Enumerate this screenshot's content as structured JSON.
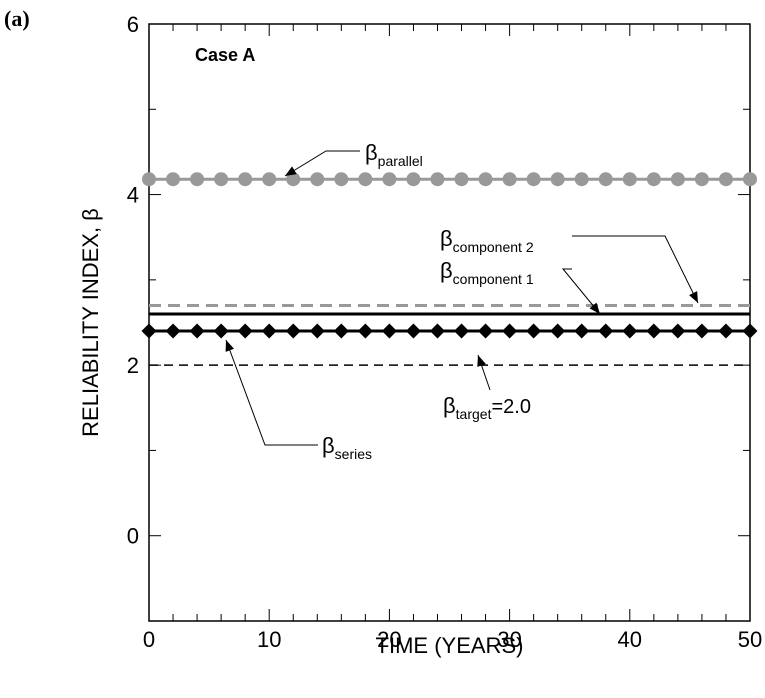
{
  "panel_label": "(a)",
  "chart_data": {
    "type": "line",
    "case_label": "Case A",
    "xlabel": "TIME (YEARS)",
    "ylabel": "RELIABILITY INDEX, β",
    "xlim": [
      0,
      50
    ],
    "ylim": [
      -1,
      6
    ],
    "xticks": [
      0,
      10,
      20,
      30,
      40,
      50
    ],
    "yticks": [
      0,
      2,
      4,
      6
    ],
    "grid": false,
    "series": [
      {
        "name": "β parallel",
        "symbol": "β",
        "subscript": "parallel",
        "suffix": "",
        "value": 4.18,
        "style": "circle-markers",
        "color": "#999999",
        "markers": true
      },
      {
        "name": "β component 2",
        "symbol": "β",
        "subscript": "component 2",
        "suffix": "",
        "value": 2.7,
        "style": "dashed",
        "color": "#999999",
        "markers": false
      },
      {
        "name": "β component 1",
        "symbol": "β",
        "subscript": "component 1",
        "suffix": "",
        "value": 2.6,
        "style": "solid",
        "color": "#000000",
        "markers": false
      },
      {
        "name": "β series",
        "symbol": "β",
        "subscript": "series",
        "suffix": "",
        "value": 2.4,
        "style": "diamond-markers",
        "color": "#000000",
        "markers": true
      },
      {
        "name": "β target=2.0",
        "symbol": "β",
        "subscript": "target",
        "suffix": "=2.0",
        "value": 2.0,
        "style": "dashed",
        "color": "#000000",
        "markers": false
      }
    ],
    "marker_x": [
      0,
      2,
      4,
      6,
      8,
      10,
      12,
      14,
      16,
      18,
      20,
      22,
      24,
      26,
      28,
      30,
      32,
      34,
      36,
      38,
      40,
      42,
      44,
      46,
      48,
      50
    ]
  }
}
